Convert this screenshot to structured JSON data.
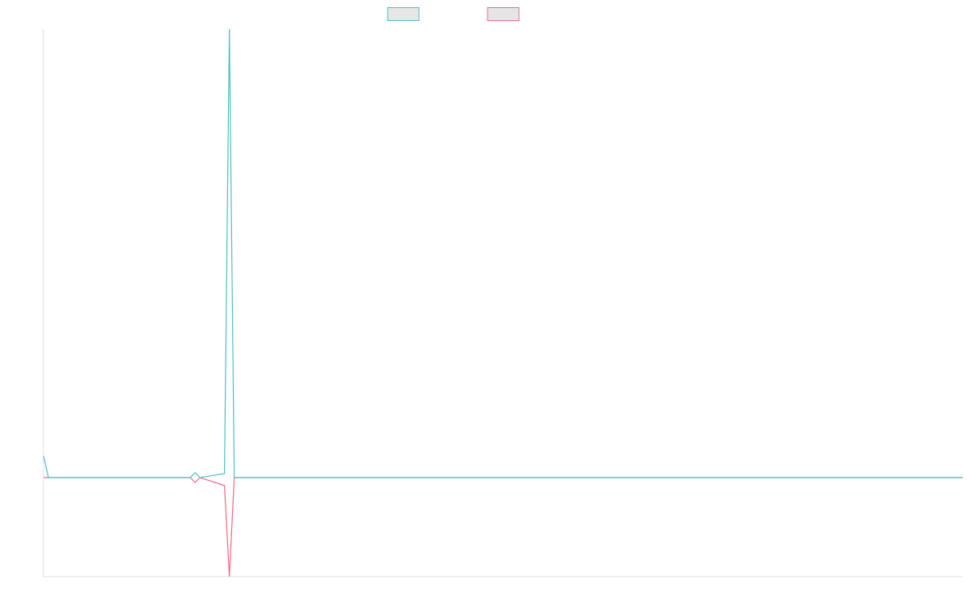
{
  "chart_data": {
    "type": "line",
    "x": [
      0,
      1,
      30,
      31,
      32,
      37,
      38,
      39,
      188
    ],
    "series": [
      {
        "color": "#4bc0c0",
        "values": [
          27,
          0,
          0,
          6,
          0,
          5,
          557,
          0,
          0
        ]
      },
      {
        "color": "#ff6384",
        "values": [
          0,
          0,
          0,
          -6,
          0,
          -10,
          -123,
          0,
          0
        ]
      }
    ],
    "xlim": [
      0,
      188
    ],
    "ylim": [
      -123,
      557
    ]
  }
}
